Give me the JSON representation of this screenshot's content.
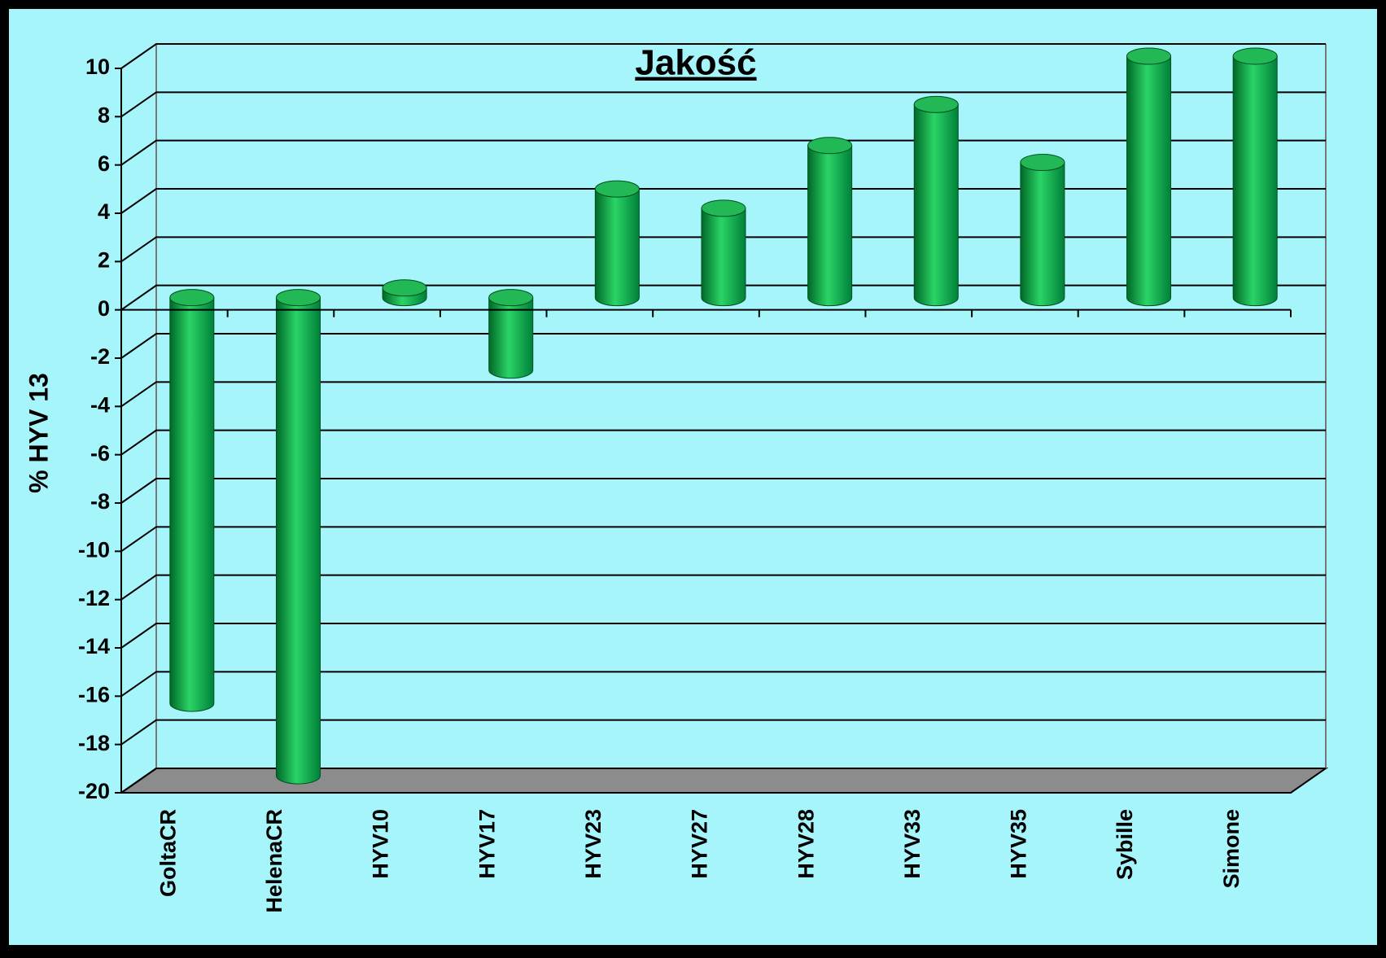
{
  "chart_data": {
    "type": "bar",
    "title": "Jakość",
    "y_label": "% HYV 13",
    "categories": [
      "GoltaCR",
      "HelenaCR",
      "HYV10",
      "HYV17",
      "HYV23",
      "HYV27",
      "HYV28",
      "HYV33",
      "HYV35",
      "Sybille",
      "Simone"
    ],
    "values": [
      -16.8,
      -19.8,
      0.4,
      -3,
      4.5,
      3.7,
      6.3,
      8,
      5.6,
      10,
      10
    ],
    "color": "#00a040",
    "ylim": [
      -20,
      10
    ],
    "yticks": [
      -20,
      -18,
      -16,
      -14,
      -12,
      -10,
      -8,
      -6,
      -4,
      -2,
      0,
      2,
      4,
      6,
      8,
      10
    ],
    "grid": true
  }
}
